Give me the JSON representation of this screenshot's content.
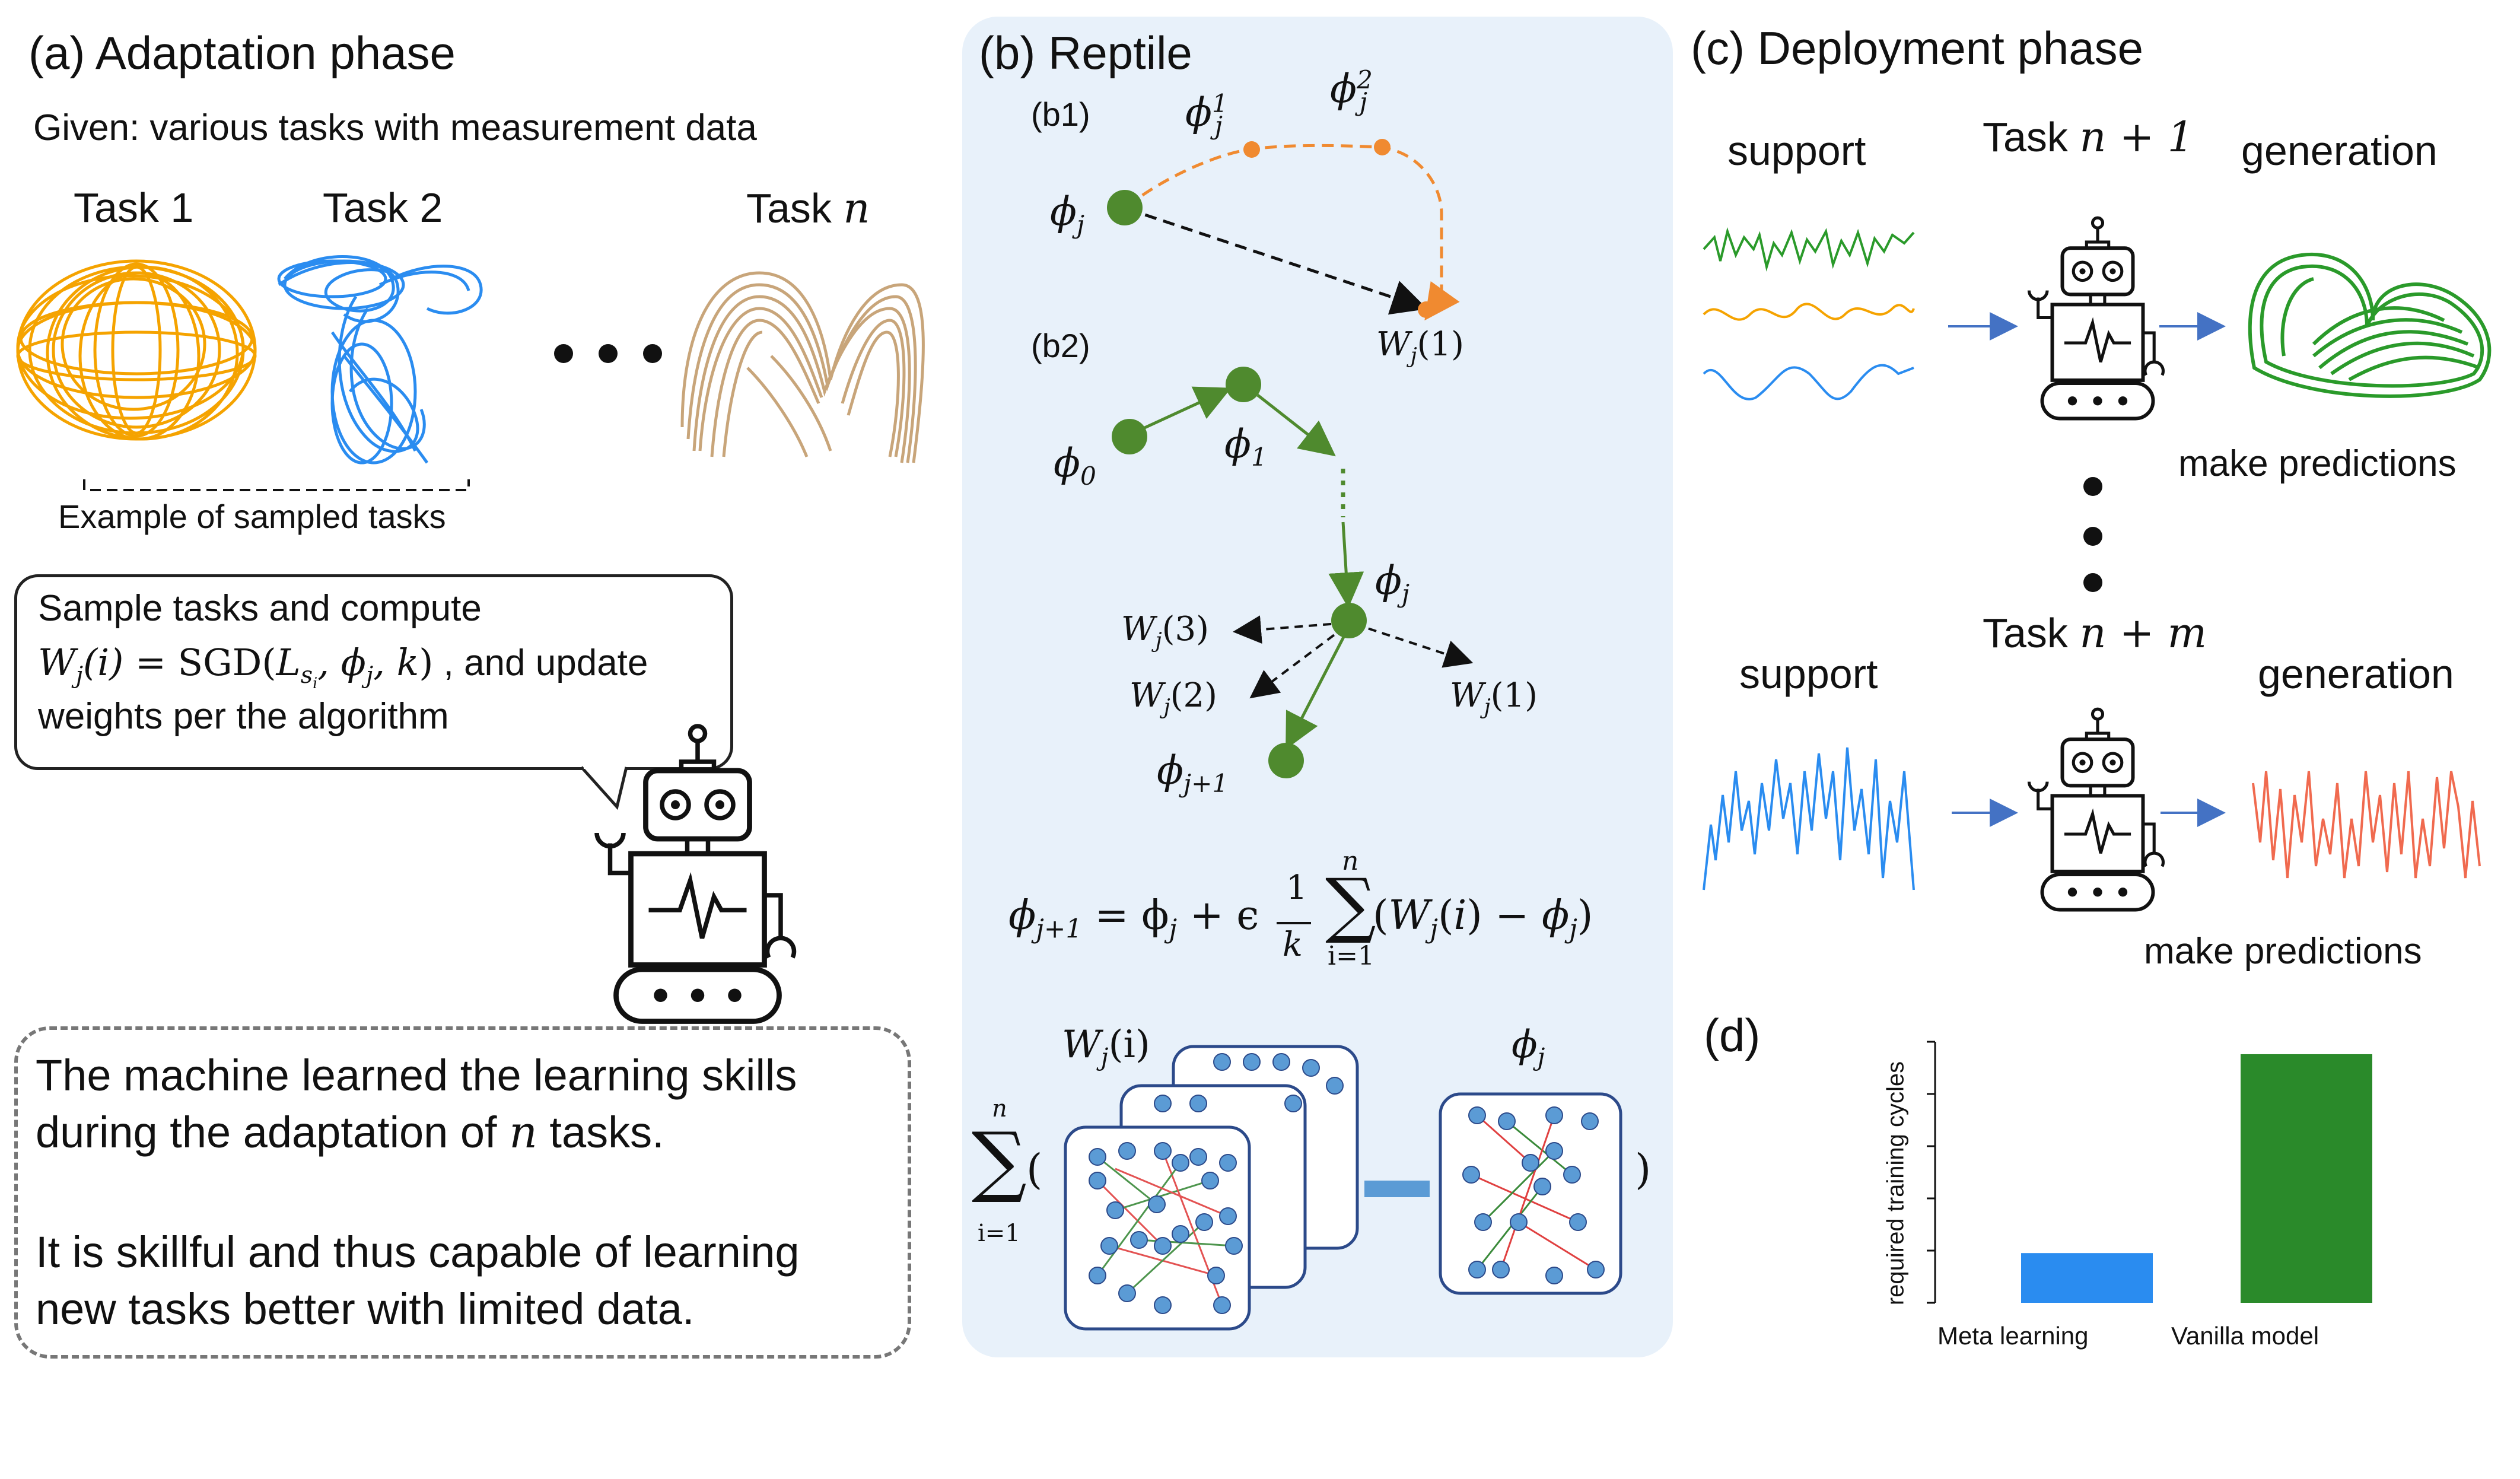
{
  "panel_a": {
    "title": "(a) Adaptation phase",
    "given": "Given: various tasks with measurement data",
    "task1": "Task 1",
    "task2": "Task 2",
    "taskn_prefix": "Task ",
    "taskn_var": "n",
    "sampled_caption": "Example of sampled tasks",
    "speech_line1": "Sample tasks and compute",
    "speech_line2_math": "W",
    "speech_line2_text": ", and update",
    "speech_line3": "weights per the algorithm",
    "conclusion_line1": "The machine learned the learning skills",
    "conclusion_line2_prefix": "during the adaptation of ",
    "conclusion_line2_var": "n",
    "conclusion_line2_suffix": " tasks.",
    "conclusion_line3": "It is skillful and thus capable of learning",
    "conclusion_line4": "new tasks better with limited data.",
    "colors": {
      "task1": "#f5a300",
      "task2": "#2a8cf0",
      "taskn": "#c8a57a"
    }
  },
  "panel_b": {
    "title": "(b) Reptile",
    "b1_label": "(b1)",
    "b2_label": "(b2)",
    "phi": "ϕ",
    "sub_j": "j",
    "sup_1": "1",
    "sup_2": "2",
    "sub_0": "0",
    "sub_1": "1",
    "sub_j1": "j+1",
    "W_label": "W",
    "w1_arg": "(1)",
    "w2_arg": "(2)",
    "w3_arg": "(3)",
    "wi_arg": "(i)",
    "eq_lhs": "ϕ",
    "eq_rhs_text": "= ϕ",
    "eq_plus_eps": "+ ϵ",
    "eq_frac_num": "1",
    "eq_frac_den": "k",
    "eq_sum_top": "n",
    "eq_sum_bottom": "i=1",
    "eq_body": "(W",
    "eq_body2": "(i) − ϕ",
    "eq_close": ")",
    "net_sum_top": "n",
    "net_sum_bottom": "i=1",
    "net_open": "(",
    "net_close": ")",
    "colors": {
      "background": "#e8f1fa",
      "orange": "#f08a30",
      "green": "#4f8a2e",
      "node": "#5b9bd5"
    }
  },
  "panel_c": {
    "title": "(c) Deployment phase",
    "support1": "support",
    "task_n1_prefix": "Task ",
    "task_n1_math": "n + 1",
    "generation1": "generation",
    "predictions1": "make predictions",
    "support2": "support",
    "task_nm_prefix": "Task ",
    "task_nm_math": "n + m",
    "generation2": "generation",
    "predictions2": "make predictions",
    "colors": {
      "green": "#2a9a2a",
      "orange": "#f5a300",
      "blue": "#2a8cf0",
      "red": "#f06a4f"
    }
  },
  "panel_d": {
    "label": "(d)",
    "chart_data": {
      "type": "bar",
      "categories": [
        "Meta learning",
        "Vanilla model"
      ],
      "values": [
        0.2,
        1.0
      ],
      "ylabel": "required training cycles",
      "xlabel": "",
      "ylim": [
        0,
        1.05
      ],
      "colors": [
        "#2a8cf0",
        "#2a8a2a"
      ]
    }
  }
}
